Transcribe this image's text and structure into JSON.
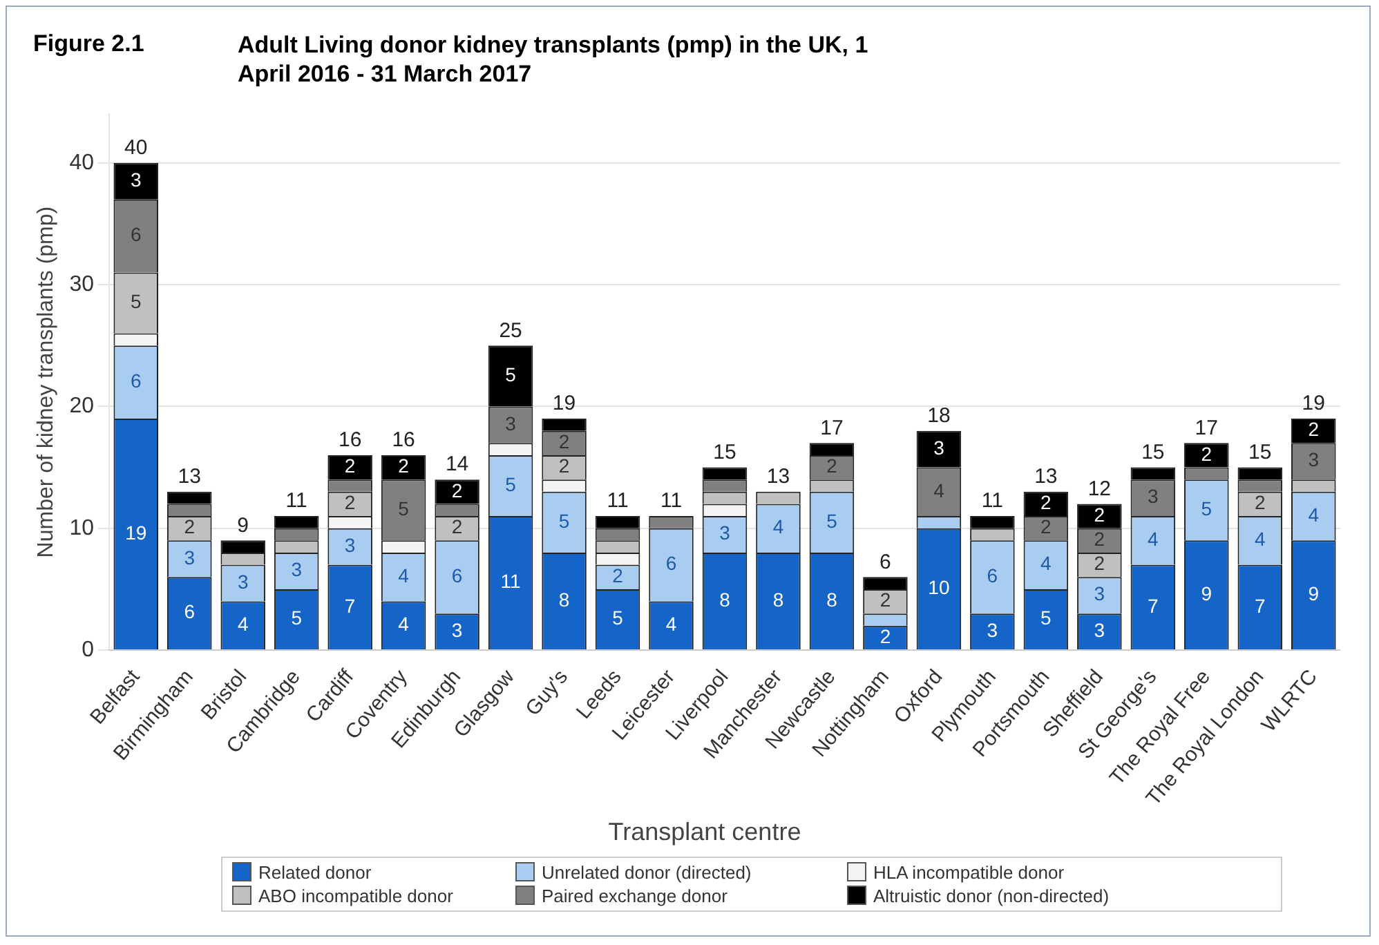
{
  "chart_data": {
    "type": "bar",
    "stacked": true,
    "title": "Figure 2.1",
    "subtitle": "Adult Living donor kidney transplants (pmp) in the UK, 1 April 2016 - 31 March 2017",
    "xlabel": "Transplant centre",
    "ylabel": "Number of kidney transplants (pmp)",
    "categories": [
      "Belfast",
      "Birmingham",
      "Bristol",
      "Cambridge",
      "Cardiff",
      "Coventry",
      "Edinburgh",
      "Glasgow",
      "Guy's",
      "Leeds",
      "Leicester",
      "Liverpool",
      "Manchester",
      "Newcastle",
      "Nottingham",
      "Oxford",
      "Plymouth",
      "Portsmouth",
      "Sheffield",
      "St George's",
      "The Royal Free",
      "The Royal London",
      "WLRTC"
    ],
    "series": [
      {
        "name": "Related donor",
        "color": "#1565c8",
        "values": [
          19,
          6,
          4,
          5,
          7,
          4,
          3,
          11,
          8,
          5,
          4,
          8,
          8,
          8,
          2,
          10,
          3,
          5,
          3,
          7,
          9,
          7,
          9
        ],
        "value_labels": [
          "19",
          "6",
          "4",
          "5",
          "7",
          "4",
          "3",
          "11",
          "8",
          "5",
          "4",
          "8",
          "8",
          "8",
          "2",
          "10",
          "3",
          "5",
          "3",
          "7",
          "9",
          "7",
          "9"
        ]
      },
      {
        "name": "Unrelated donor (directed)",
        "color": "#a9cdf0",
        "values": [
          6,
          3,
          3,
          3,
          3,
          4,
          6,
          5,
          5,
          2,
          6,
          3,
          4,
          5,
          1,
          1,
          6,
          4,
          3,
          4,
          5,
          4,
          4
        ],
        "value_labels": [
          "6",
          "3",
          "3",
          "3",
          "3",
          "4",
          "6",
          "5",
          "5",
          "2",
          "6",
          "3",
          "4",
          "5",
          null,
          null,
          "6",
          "4",
          "3",
          "4",
          "5",
          "4",
          "4"
        ]
      },
      {
        "name": "HLA incompatible donor",
        "color": "#f4f4f4",
        "values": [
          1,
          0,
          0,
          0,
          1,
          1,
          0,
          1,
          1,
          1,
          0,
          1,
          0,
          0,
          0,
          0,
          0,
          0,
          0,
          0,
          0,
          0,
          0
        ]
      },
      {
        "name": "ABO incompatible donor",
        "color": "#c0c0c0",
        "values": [
          5,
          2,
          1,
          1,
          2,
          0,
          2,
          0,
          2,
          1,
          0,
          1,
          1,
          1,
          2,
          0,
          1,
          0,
          2,
          0,
          0,
          2,
          1
        ],
        "value_labels": [
          "5",
          "2",
          null,
          null,
          "2",
          null,
          "2",
          null,
          "2",
          null,
          null,
          null,
          null,
          null,
          "2",
          null,
          null,
          null,
          "2",
          null,
          null,
          "2",
          null
        ]
      },
      {
        "name": "Paired exchange donor",
        "color": "#808080",
        "values": [
          6,
          1,
          0,
          1,
          1,
          5,
          1,
          3,
          2,
          1,
          1,
          1,
          0,
          2,
          0,
          4,
          0,
          2,
          2,
          3,
          1,
          1,
          3
        ],
        "value_labels": [
          "6",
          null,
          null,
          null,
          null,
          "5",
          null,
          "3",
          "2",
          null,
          null,
          null,
          null,
          "2",
          null,
          "4",
          null,
          "2",
          "2",
          "3",
          null,
          null,
          "3"
        ]
      },
      {
        "name": "Altruistic donor (non-directed)",
        "color": "#000000",
        "values": [
          3,
          1,
          1,
          1,
          2,
          2,
          2,
          5,
          1,
          1,
          0,
          1,
          0,
          1,
          1,
          3,
          1,
          2,
          2,
          1,
          2,
          1,
          2
        ],
        "value_labels": [
          "3",
          null,
          null,
          null,
          "2",
          "2",
          "2",
          "5",
          null,
          null,
          null,
          null,
          null,
          null,
          null,
          "3",
          null,
          "2",
          "2",
          null,
          "2",
          null,
          "2"
        ]
      }
    ],
    "totals": [
      "40",
      "13",
      "9",
      "11",
      "16",
      "16",
      "14",
      "25",
      "19",
      "11",
      "11",
      "15",
      "13",
      "17",
      "6",
      "18",
      "11",
      "13",
      "12",
      "15",
      "17",
      "15",
      "19"
    ],
    "ylim": [
      0,
      44
    ],
    "yticks": [
      0,
      10,
      20,
      30,
      40
    ],
    "grid": "y",
    "legend": "bottom"
  }
}
